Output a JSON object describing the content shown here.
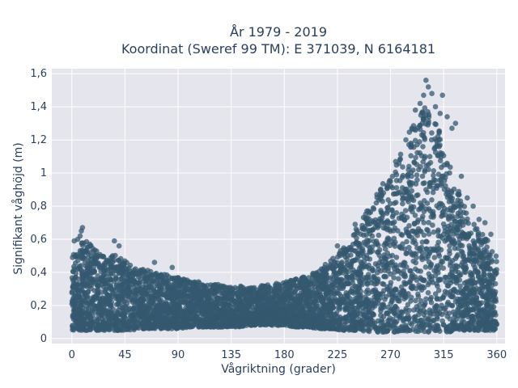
{
  "chart_data": {
    "type": "scatter",
    "title_line1": "År 1979 - 2019",
    "title_line2": "Koordinat (Sweref 99 TM): E 371039, N 6164181",
    "xlabel": "Vågriktning (grader)",
    "ylabel": "Signifikant våghöjd (m)",
    "xlim": [
      -17,
      367
    ],
    "ylim": [
      -0.03,
      1.63
    ],
    "x_ticks": [
      0,
      45,
      90,
      135,
      180,
      225,
      270,
      315,
      360
    ],
    "x_tick_labels": [
      "0",
      "45",
      "90",
      "135",
      "180",
      "225",
      "270",
      "315",
      "360"
    ],
    "y_ticks": [
      0,
      0.2,
      0.4,
      0.6,
      0.8,
      1,
      1.2,
      1.4,
      1.6
    ],
    "y_tick_labels": [
      "0",
      "0,2",
      "0,4",
      "0,6",
      "0,8",
      "1",
      "1,2",
      "1,4",
      "1,6"
    ],
    "grid": true,
    "colors": {
      "marker": "#34586f",
      "plot_bg": "#e5e5ee",
      "grid": "#ffffff",
      "text": "#2a3f5f"
    },
    "marker_opacity": 0.75,
    "envelope": {
      "x": [
        0,
        5,
        10,
        20,
        30,
        40,
        50,
        60,
        70,
        80,
        90,
        100,
        110,
        120,
        130,
        140,
        150,
        160,
        170,
        180,
        190,
        200,
        210,
        220,
        230,
        240,
        250,
        260,
        270,
        280,
        290,
        300,
        310,
        315,
        320,
        330,
        340,
        350,
        360
      ],
      "y_min": [
        0.05,
        0.05,
        0.05,
        0.05,
        0.05,
        0.05,
        0.05,
        0.06,
        0.06,
        0.06,
        0.06,
        0.07,
        0.07,
        0.07,
        0.07,
        0.07,
        0.08,
        0.08,
        0.08,
        0.08,
        0.07,
        0.07,
        0.06,
        0.06,
        0.05,
        0.05,
        0.04,
        0.04,
        0.04,
        0.04,
        0.04,
        0.04,
        0.04,
        0.04,
        0.04,
        0.05,
        0.05,
        0.05,
        0.05
      ],
      "y_max": [
        0.5,
        0.56,
        0.6,
        0.54,
        0.5,
        0.52,
        0.44,
        0.42,
        0.4,
        0.39,
        0.37,
        0.35,
        0.34,
        0.33,
        0.32,
        0.32,
        0.31,
        0.32,
        0.33,
        0.34,
        0.36,
        0.38,
        0.42,
        0.48,
        0.55,
        0.65,
        0.78,
        0.9,
        1.0,
        1.18,
        1.3,
        1.42,
        1.28,
        1.2,
        1.05,
        0.85,
        0.7,
        0.62,
        0.5
      ]
    },
    "outliers": [
      {
        "x": 2,
        "y": 0.59
      },
      {
        "x": 5,
        "y": 0.6
      },
      {
        "x": 7,
        "y": 0.62
      },
      {
        "x": 8,
        "y": 0.65
      },
      {
        "x": 9,
        "y": 0.67
      },
      {
        "x": 15,
        "y": 0.57
      },
      {
        "x": 36,
        "y": 0.59
      },
      {
        "x": 40,
        "y": 0.56
      },
      {
        "x": 70,
        "y": 0.46
      },
      {
        "x": 85,
        "y": 0.43
      },
      {
        "x": 225,
        "y": 0.56
      },
      {
        "x": 240,
        "y": 0.69
      },
      {
        "x": 250,
        "y": 0.77
      },
      {
        "x": 264,
        "y": 0.88
      },
      {
        "x": 270,
        "y": 0.95
      },
      {
        "x": 278,
        "y": 1.08
      },
      {
        "x": 283,
        "y": 1.2
      },
      {
        "x": 288,
        "y": 1.27
      },
      {
        "x": 291,
        "y": 1.38
      },
      {
        "x": 295,
        "y": 1.42
      },
      {
        "x": 298,
        "y": 1.47
      },
      {
        "x": 300,
        "y": 1.56
      },
      {
        "x": 302,
        "y": 1.52
      },
      {
        "x": 305,
        "y": 1.48
      },
      {
        "x": 308,
        "y": 1.4
      },
      {
        "x": 312,
        "y": 1.36
      },
      {
        "x": 314,
        "y": 1.47
      },
      {
        "x": 318,
        "y": 1.34
      },
      {
        "x": 322,
        "y": 1.27
      },
      {
        "x": 325,
        "y": 1.3
      },
      {
        "x": 320,
        "y": 1.0
      },
      {
        "x": 330,
        "y": 0.98
      },
      {
        "x": 335,
        "y": 0.85
      },
      {
        "x": 340,
        "y": 0.8
      },
      {
        "x": 345,
        "y": 0.72
      },
      {
        "x": 350,
        "y": 0.7
      },
      {
        "x": 355,
        "y": 0.63
      }
    ]
  }
}
